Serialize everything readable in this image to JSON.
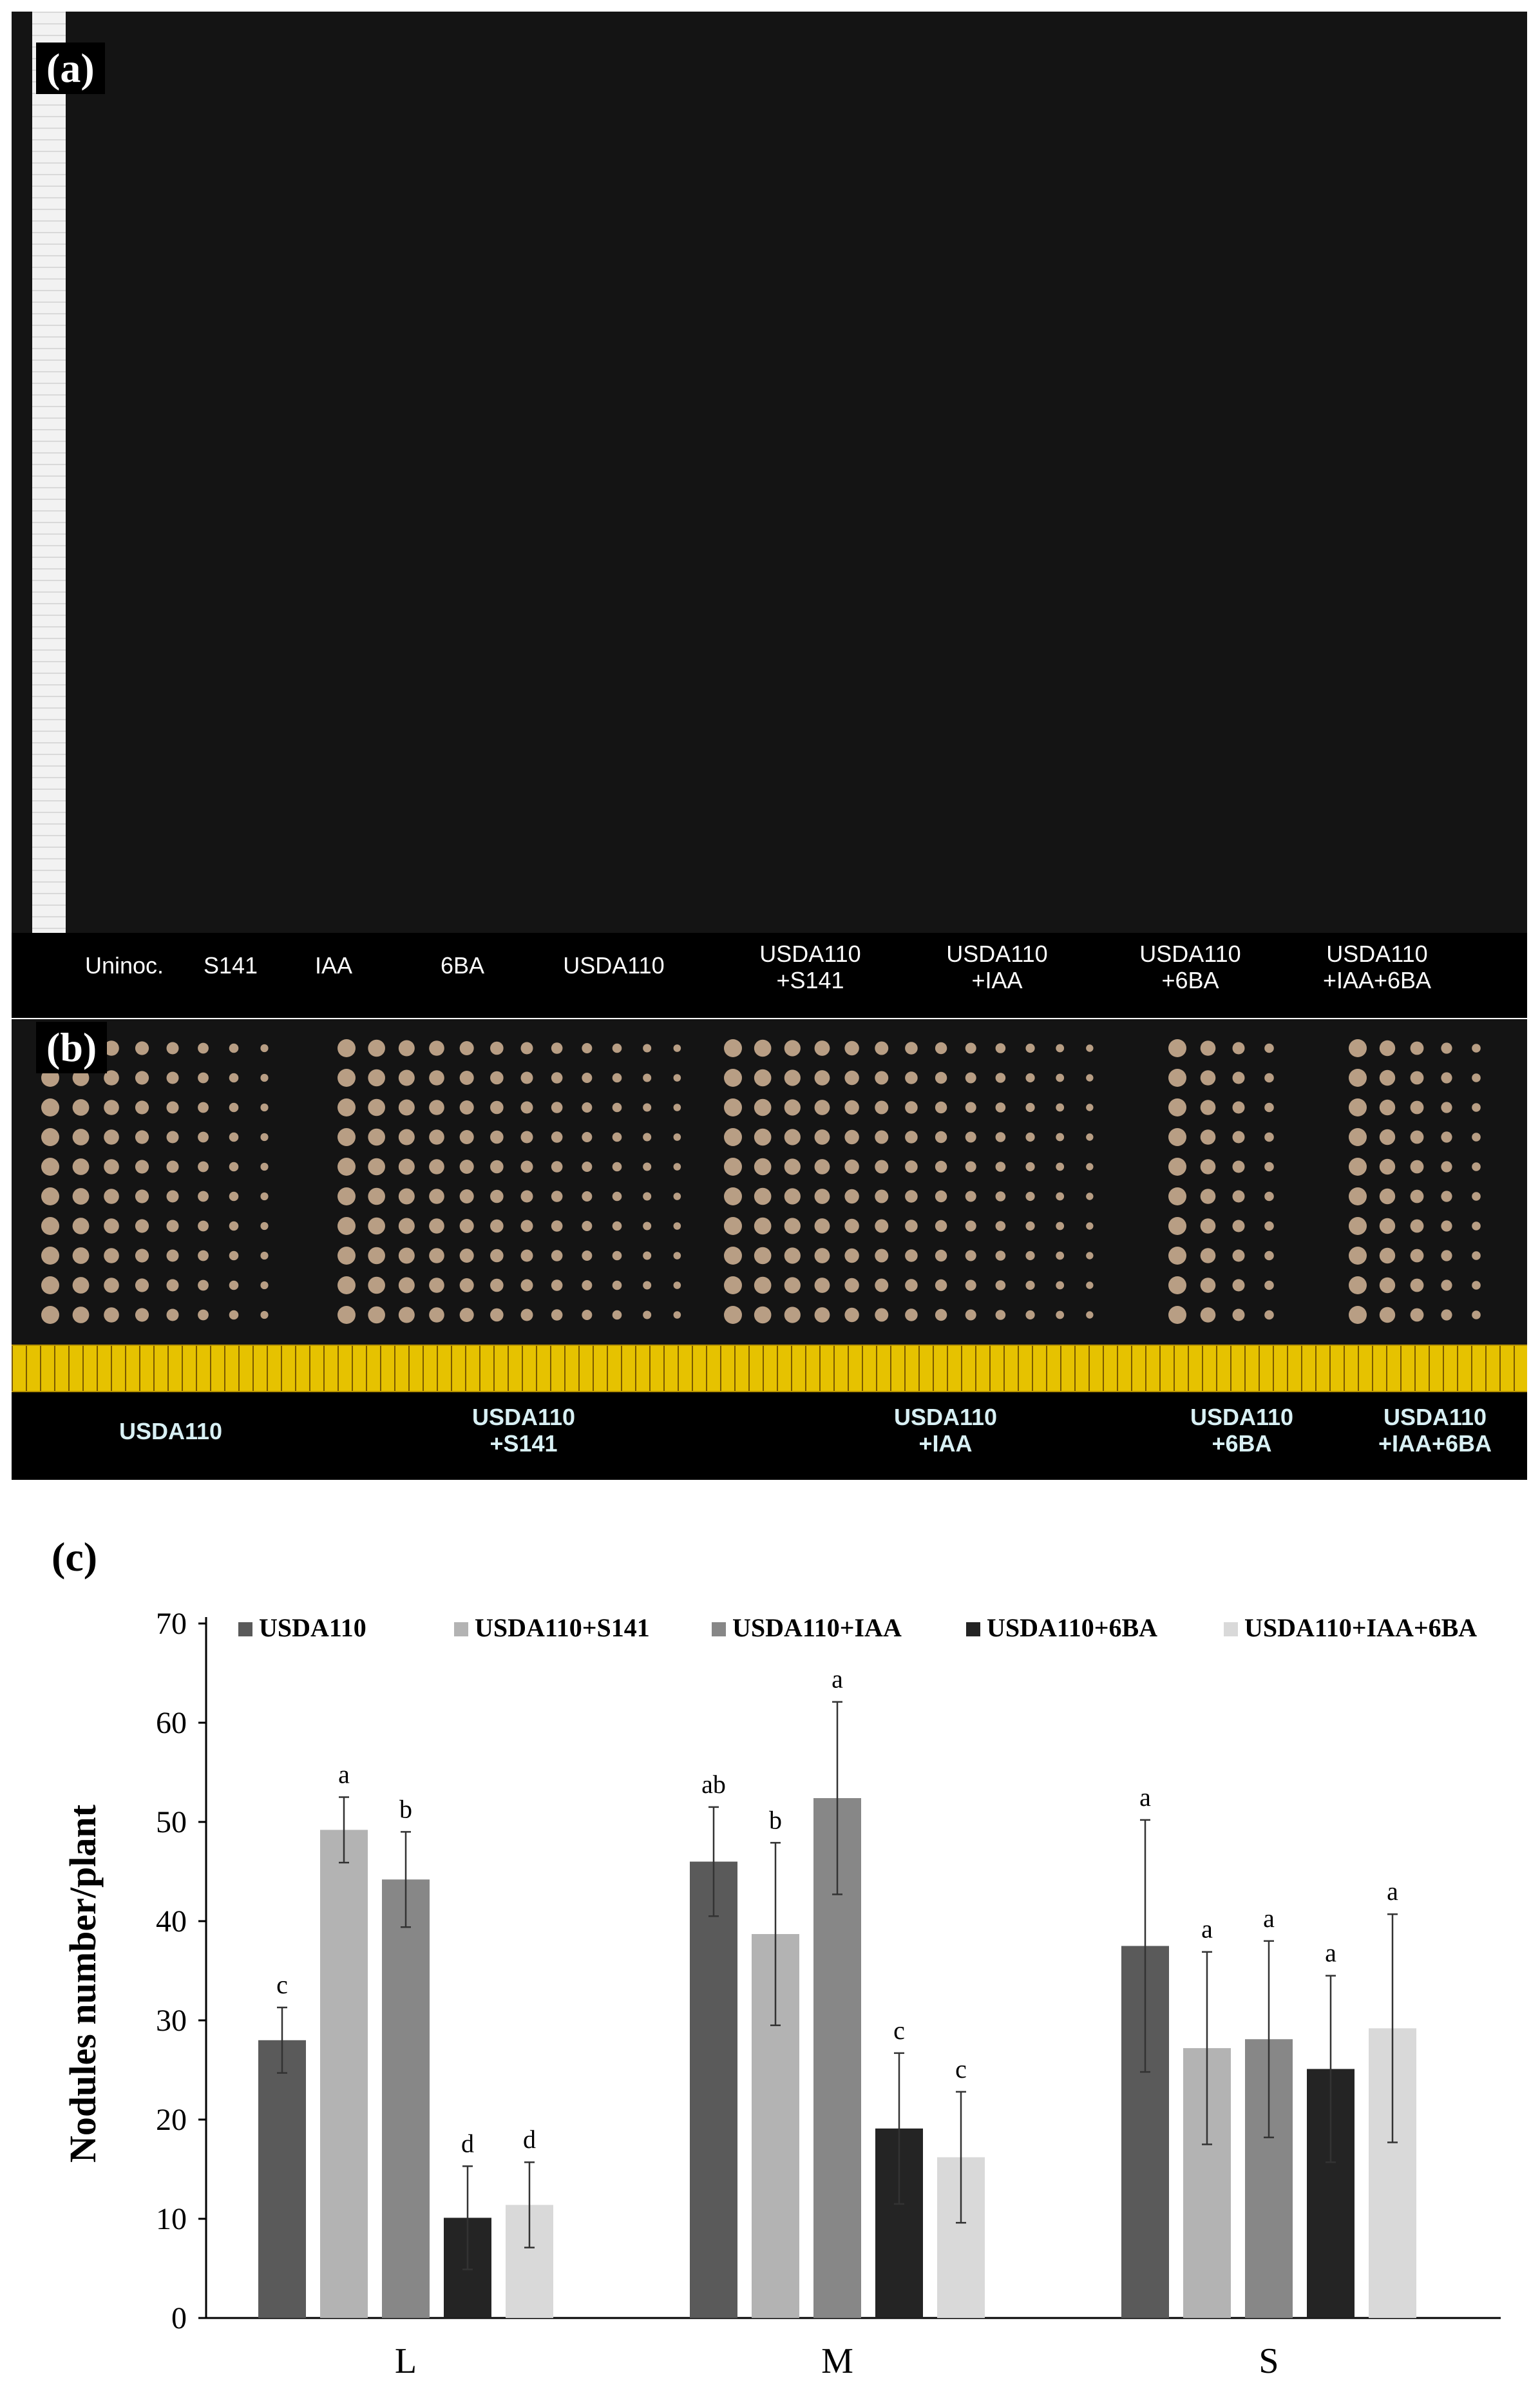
{
  "panel_a": {
    "letter": "(a)",
    "labels": [
      "Uninoc.",
      "S141",
      "IAA",
      "6BA",
      "USDA110",
      "USDA110\n+S141",
      "USDA110\n+IAA",
      "USDA110\n+6BA",
      "USDA110\n+IAA+6BA"
    ]
  },
  "panel_b": {
    "letter": "(b)",
    "labels": [
      "USDA110",
      "USDA110\n+S141",
      "USDA110\n+IAA",
      "USDA110\n+6BA",
      "USDA110\n+IAA+6BA"
    ]
  },
  "panel_c": {
    "letter": "(c)"
  },
  "chart_data": {
    "type": "bar",
    "categories": [
      "L",
      "M",
      "S"
    ],
    "ylabel": "Nodules number/plant",
    "ylim": [
      0,
      70
    ],
    "yticks": [
      0,
      10,
      20,
      30,
      40,
      50,
      60,
      70
    ],
    "legend_position": "top",
    "grid": false,
    "series": [
      {
        "name": "USDA110",
        "color": "#5a5a5a",
        "values": [
          28,
          46,
          37.5
        ],
        "errors": [
          3.3,
          5.5,
          12.7
        ],
        "letters": [
          "c",
          "ab",
          "a"
        ]
      },
      {
        "name": "USDA110+S141",
        "color": "#b3b3b3",
        "values": [
          49.2,
          38.7,
          27.2
        ],
        "errors": [
          3.3,
          9.2,
          9.7
        ],
        "letters": [
          "a",
          "b",
          "a"
        ]
      },
      {
        "name": "USDA110+IAA",
        "color": "#878787",
        "values": [
          44.2,
          52.4,
          28.1
        ],
        "errors": [
          4.8,
          9.7,
          9.9
        ],
        "letters": [
          "b",
          "a",
          "a"
        ]
      },
      {
        "name": "USDA110+6BA",
        "color": "#242424",
        "values": [
          10.1,
          19.1,
          25.1
        ],
        "errors": [
          5.2,
          7.6,
          9.4
        ],
        "letters": [
          "d",
          "c",
          "a"
        ]
      },
      {
        "name": "USDA110+IAA+6BA",
        "color": "#d9d9d9",
        "values": [
          11.4,
          16.2,
          29.2
        ],
        "errors": [
          4.3,
          6.6,
          11.5
        ],
        "letters": [
          "d",
          "c",
          "a"
        ]
      }
    ]
  }
}
